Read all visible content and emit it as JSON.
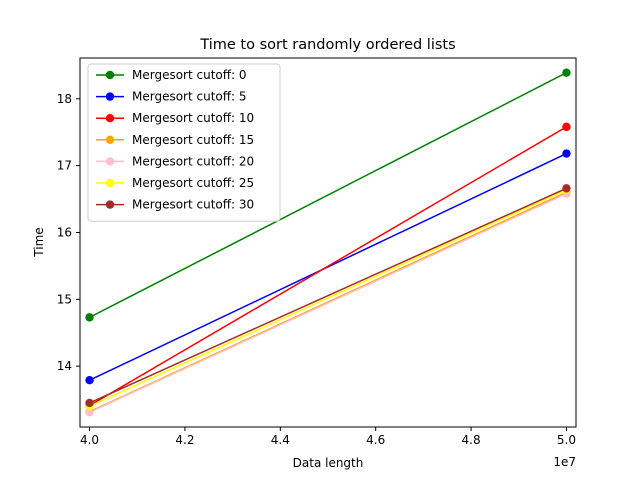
{
  "chart_data": {
    "type": "line",
    "title": "Time to sort randomly ordered lists",
    "xlabel": "Data length",
    "ylabel": "Time",
    "x_offset_label": "1e7",
    "x_multiplier": 10000000,
    "x": [
      40000000,
      50000000
    ],
    "xlim": [
      39800000,
      50200000
    ],
    "ylim": [
      13.09,
      18.61
    ],
    "x_ticks": [
      40000000,
      42000000,
      44000000,
      46000000,
      48000000,
      50000000
    ],
    "x_tick_labels": [
      "4.0",
      "4.2",
      "4.4",
      "4.6",
      "4.8",
      "5.0"
    ],
    "y_ticks": [
      14,
      15,
      16,
      17,
      18
    ],
    "y_tick_labels": [
      "14",
      "15",
      "16",
      "17",
      "18"
    ],
    "grid": false,
    "legend_position": "top-left",
    "series": [
      {
        "name": "Mergesort cutoff: 0",
        "color": "#008000",
        "values": [
          14.73,
          18.39
        ]
      },
      {
        "name": "Mergesort cutoff: 5",
        "color": "#0000ff",
        "values": [
          13.79,
          17.18
        ]
      },
      {
        "name": "Mergesort cutoff: 10",
        "color": "#ff0000",
        "values": [
          13.41,
          17.58
        ]
      },
      {
        "name": "Mergesort cutoff: 15",
        "color": "#ffa500",
        "values": [
          13.32,
          16.6
        ]
      },
      {
        "name": "Mergesort cutoff: 20",
        "color": "#ffc0cb",
        "values": [
          13.31,
          16.58
        ]
      },
      {
        "name": "Mergesort cutoff: 25",
        "color": "#ffff00",
        "values": [
          13.4,
          16.64
        ]
      },
      {
        "name": "Mergesort cutoff: 30",
        "color": "#a52a2a",
        "values": [
          13.45,
          16.66
        ]
      }
    ]
  }
}
